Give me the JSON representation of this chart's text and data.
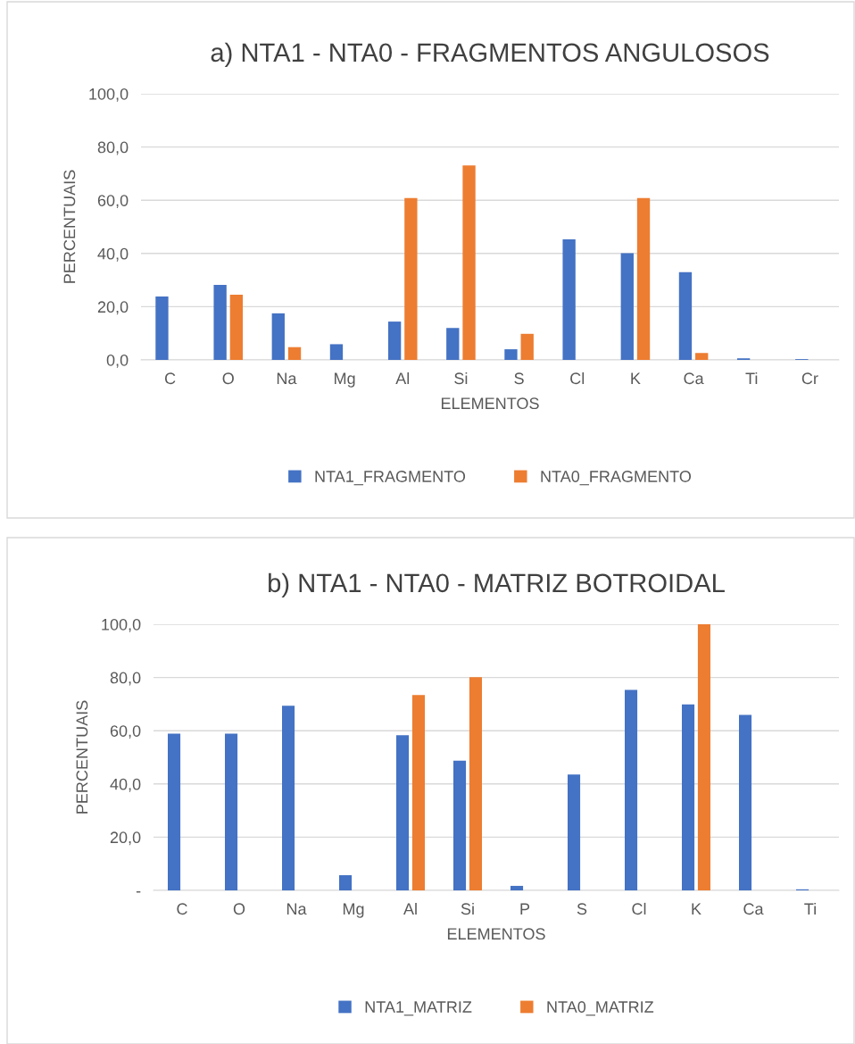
{
  "chart_data": [
    {
      "type": "bar",
      "title": "a) NTA1 - NTA0 - FRAGMENTOS ANGULOSOS",
      "xlabel": "ELEMENTOS",
      "ylabel": "PERCENTUAIS",
      "categories": [
        "C",
        "O",
        "Na",
        "Mg",
        "Al",
        "Si",
        "S",
        "Cl",
        "K",
        "Ca",
        "Ti",
        "Cr"
      ],
      "series": [
        {
          "name": "NTA1_FRAGMENTO",
          "color": "#4472c4",
          "values": [
            23.8,
            28.2,
            17.5,
            5.9,
            14.4,
            12.0,
            4.0,
            45.3,
            40.1,
            33.0,
            0.6,
            0.3
          ]
        },
        {
          "name": "NTA0_FRAGMENTO",
          "color": "#ed7d31",
          "values": [
            0,
            24.5,
            4.8,
            0,
            60.8,
            73.1,
            9.8,
            0,
            60.8,
            2.6,
            0,
            0
          ]
        }
      ],
      "ylim": [
        0,
        100
      ],
      "yticks": [
        {
          "value": 0,
          "label": "0,0"
        },
        {
          "value": 20,
          "label": "20,0"
        },
        {
          "value": 40,
          "label": "40,0"
        },
        {
          "value": 60,
          "label": "60,0"
        },
        {
          "value": 80,
          "label": "80,0"
        },
        {
          "value": 100,
          "label": "100,0"
        }
      ],
      "grid": "y",
      "legend": "bottom"
    },
    {
      "type": "bar",
      "title": "b) NTA1 - NTA0 - MATRIZ BOTROIDAL",
      "xlabel": "ELEMENTOS",
      "ylabel": "PERCENTUAIS",
      "categories": [
        "C",
        "O",
        "Na",
        "Mg",
        "Al",
        "Si",
        "P",
        "S",
        "Cl",
        "K",
        "Ca",
        "Ti"
      ],
      "series": [
        {
          "name": "NTA1_MATRIZ",
          "color": "#4472c4",
          "values": [
            58.9,
            58.9,
            69.4,
            5.7,
            58.3,
            48.7,
            1.7,
            43.5,
            75.3,
            69.9,
            65.9,
            0.4
          ]
        },
        {
          "name": "NTA0_MATRIZ",
          "color": "#ed7d31",
          "values": [
            0,
            0,
            0,
            0,
            73.4,
            80.1,
            0,
            0,
            0,
            100,
            0,
            0
          ]
        }
      ],
      "ylim": [
        0,
        100
      ],
      "yticks": [
        {
          "value": 0,
          "label": "-"
        },
        {
          "value": 20,
          "label": "20,0"
        },
        {
          "value": 40,
          "label": "40,0"
        },
        {
          "value": 60,
          "label": "60,0"
        },
        {
          "value": 80,
          "label": "80,0"
        },
        {
          "value": 100,
          "label": "100,0"
        }
      ],
      "grid": "y",
      "legend": "bottom"
    }
  ]
}
